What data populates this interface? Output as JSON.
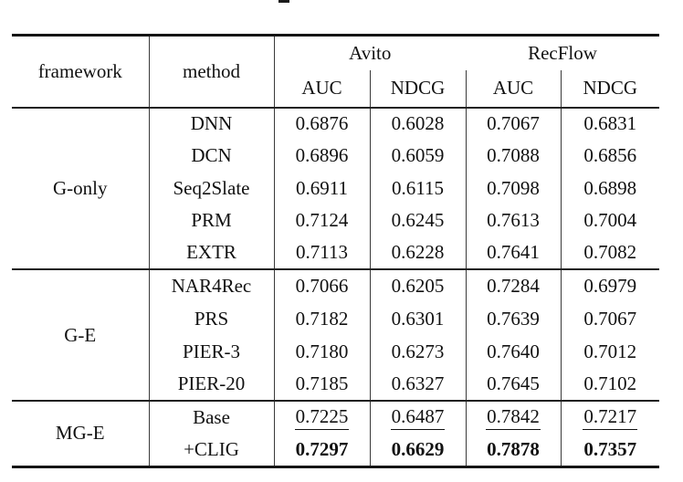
{
  "page": {
    "background": "#ffffff",
    "caption_fragment_present": true
  },
  "table": {
    "header": {
      "framework": "framework",
      "method": "method",
      "groups": [
        {
          "label": "Avito",
          "metrics": [
            "AUC",
            "NDCG"
          ]
        },
        {
          "label": "RecFlow",
          "metrics": [
            "AUC",
            "NDCG"
          ]
        }
      ]
    },
    "sections": [
      {
        "framework": "G-only",
        "rows": [
          {
            "method": "DNN",
            "values": [
              "0.6876",
              "0.6028",
              "0.7067",
              "0.6831"
            ]
          },
          {
            "method": "DCN",
            "values": [
              "0.6896",
              "0.6059",
              "0.7088",
              "0.6856"
            ]
          },
          {
            "method": "Seq2Slate",
            "values": [
              "0.6911",
              "0.6115",
              "0.7098",
              "0.6898"
            ]
          },
          {
            "method": "PRM",
            "values": [
              "0.7124",
              "0.6245",
              "0.7613",
              "0.7004"
            ]
          },
          {
            "method": "EXTR",
            "values": [
              "0.7113",
              "0.6228",
              "0.7641",
              "0.7082"
            ]
          }
        ]
      },
      {
        "framework": "G-E",
        "rows": [
          {
            "method": "NAR4Rec",
            "values": [
              "0.7066",
              "0.6205",
              "0.7284",
              "0.6979"
            ]
          },
          {
            "method": "PRS",
            "values": [
              "0.7182",
              "0.6301",
              "0.7639",
              "0.7067"
            ]
          },
          {
            "method": "PIER-3",
            "values": [
              "0.7180",
              "0.6273",
              "0.7640",
              "0.7012"
            ]
          },
          {
            "method": "PIER-20",
            "values": [
              "0.7185",
              "0.6327",
              "0.7645",
              "0.7102"
            ]
          }
        ]
      },
      {
        "framework": "MG-E",
        "rows": [
          {
            "method": "Base",
            "emphasis": "underline",
            "values": [
              "0.7225",
              "0.6487",
              "0.7842",
              "0.7217"
            ]
          },
          {
            "method": "+CLIG",
            "emphasis": "bold",
            "values": [
              "0.7297",
              "0.6629",
              "0.7878",
              "0.7357"
            ]
          }
        ]
      }
    ]
  },
  "colors": {
    "top_bottom_rule": "#151515",
    "section_rule": "#1f1f1f",
    "grid_line": "#3a3a3a",
    "text": "#111111"
  }
}
